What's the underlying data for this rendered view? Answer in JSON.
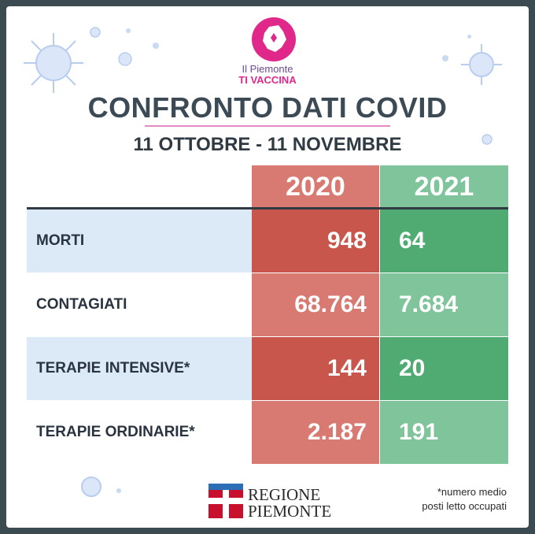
{
  "logo": {
    "line1": "Il Piemonte",
    "line2": "TI VACCINA"
  },
  "title": "CONFRONTO DATI COVID",
  "subtitle": "11 OTTOBRE - 11 NOVEMBRE",
  "table": {
    "headers": [
      "2020",
      "2021"
    ],
    "rows": [
      {
        "label": "MORTI",
        "v2020": "948",
        "v2021": "64"
      },
      {
        "label": "CONTAGIATI",
        "v2020": "68.764",
        "v2021": "7.684"
      },
      {
        "label": "TERAPIE INTENSIVE*",
        "v2020": "144",
        "v2021": "20"
      },
      {
        "label": "TERAPIE ORDINARIE*",
        "v2020": "2.187",
        "v2021": "191"
      }
    ]
  },
  "footer": {
    "regione_line1": "REGIONE",
    "regione_line2": "PIEMONTE",
    "note_line1": "*numero medio",
    "note_line2": "posti letto occupati"
  },
  "colors": {
    "red_dark": "#c9564c",
    "red_light": "#d97a72",
    "green_dark": "#4fab72",
    "green_light": "#7fc49b",
    "label_bg": "#dce9f7",
    "logo_pink": "#e0288a"
  },
  "icons": [
    "virus-icon",
    "piemonte-map-icon",
    "regione-flag-icon"
  ]
}
